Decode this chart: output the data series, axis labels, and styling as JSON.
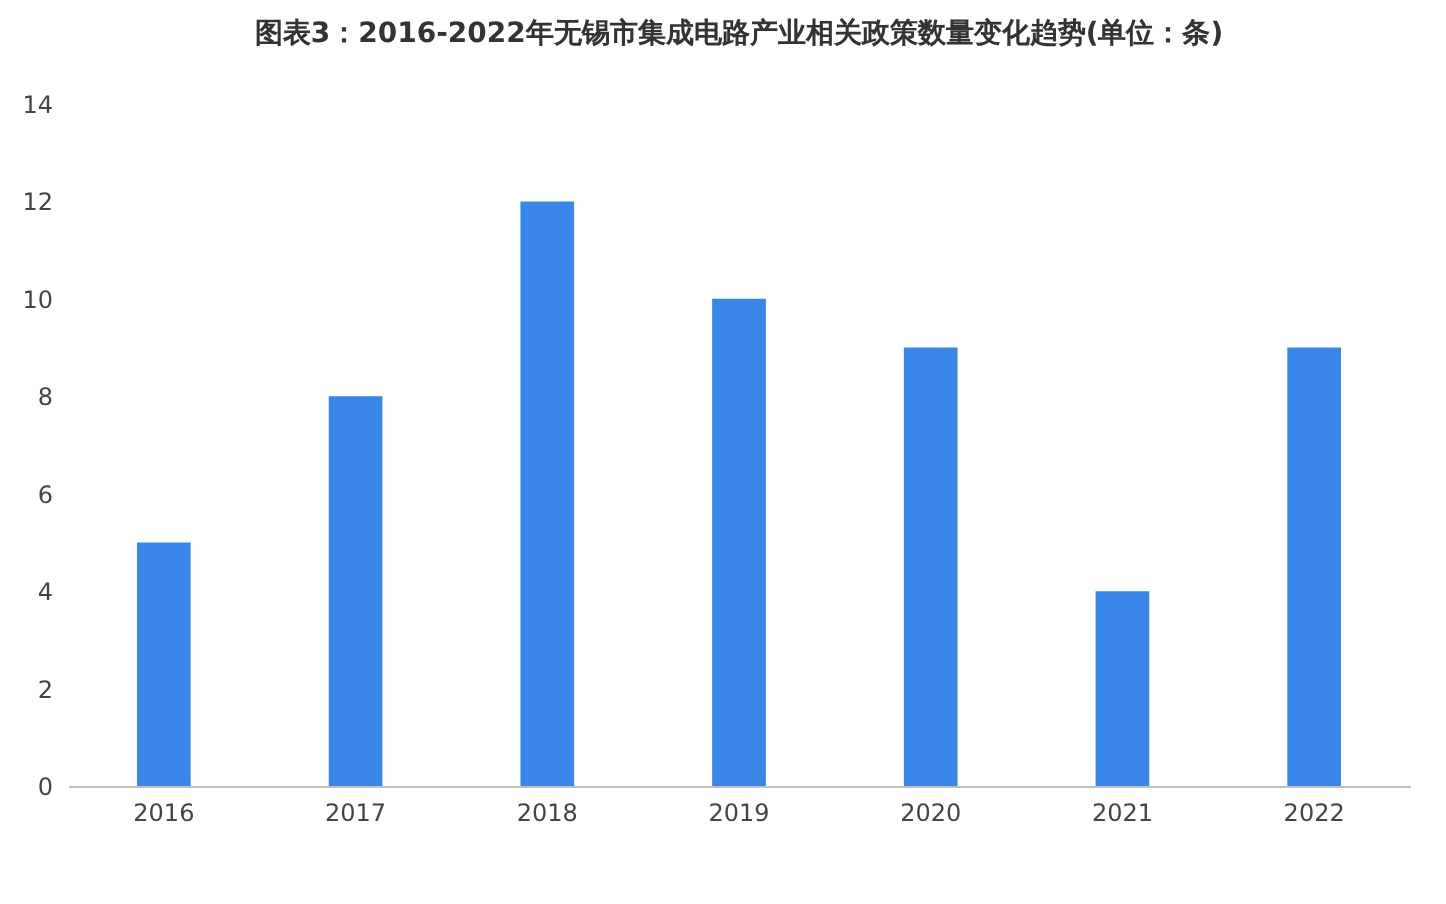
{
  "chart_data": {
    "type": "bar",
    "title": "图表3：2016-2022年无锡市集成电路产业相关政策数量变化趋势(单位：条)",
    "categories": [
      "2016",
      "2017",
      "2018",
      "2019",
      "2020",
      "2021",
      "2022"
    ],
    "values": [
      5,
      8,
      12,
      10,
      9,
      4,
      9
    ],
    "color": "#3a86e8",
    "ylim": [
      0,
      14
    ],
    "yticks": [
      0,
      2,
      4,
      6,
      8,
      10,
      12,
      14
    ],
    "grid": false
  }
}
